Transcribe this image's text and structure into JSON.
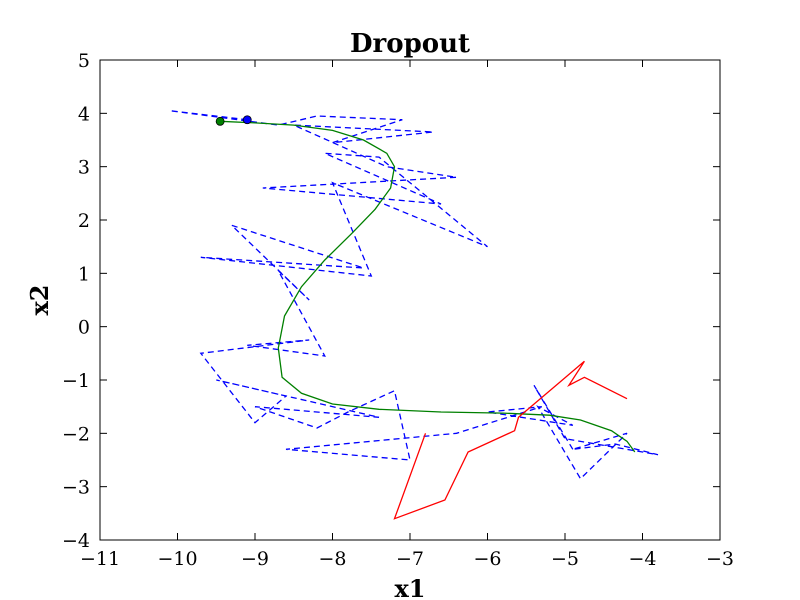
{
  "chart_data": {
    "type": "line",
    "title": "Dropout",
    "xlabel": "x1",
    "ylabel": "x2",
    "xlim": [
      -11,
      -3
    ],
    "ylim": [
      -4,
      5
    ],
    "xticks": [
      -11,
      -10,
      -9,
      -8,
      -7,
      -6,
      -5,
      -4,
      -3
    ],
    "xtick_labels": [
      "−11",
      "−10",
      "−9",
      "−8",
      "−7",
      "−6",
      "−5",
      "−4",
      "−3"
    ],
    "yticks": [
      -4,
      -3,
      -2,
      -1,
      0,
      1,
      2,
      3,
      4,
      5
    ],
    "ytick_labels": [
      "−4",
      "−3",
      "−2",
      "−1",
      "0",
      "1",
      "2",
      "3",
      "4",
      "5"
    ],
    "grid": false,
    "legend": "none",
    "series": [
      {
        "color": "#0000ff",
        "style": "dashed",
        "points": [
          [
            -9.1,
            3.88
          ],
          [
            -10.1,
            4.05
          ],
          [
            -8.7,
            3.78
          ],
          [
            -8.2,
            3.95
          ],
          [
            -7.1,
            3.88
          ],
          [
            -8.0,
            3.45
          ],
          [
            -6.7,
            3.65
          ],
          [
            -8.5,
            3.78
          ],
          [
            -7.3,
            3.0
          ],
          [
            -6.4,
            2.8
          ],
          [
            -8.9,
            2.6
          ],
          [
            -6.6,
            2.3
          ],
          [
            -8.1,
            3.25
          ],
          [
            -7.4,
            3.18
          ],
          [
            -6.0,
            1.5
          ],
          [
            -8.0,
            2.7
          ],
          [
            -7.5,
            0.95
          ],
          [
            -9.7,
            1.3
          ],
          [
            -7.6,
            1.1
          ],
          [
            -9.3,
            1.9
          ],
          [
            -8.3,
            0.5
          ],
          [
            -8.7,
            1.05
          ],
          [
            -8.1,
            -0.55
          ],
          [
            -9.1,
            -0.35
          ],
          [
            -8.3,
            -0.25
          ],
          [
            -9.7,
            -0.5
          ],
          [
            -9.0,
            -1.8
          ],
          [
            -8.6,
            -1.3
          ],
          [
            -9.5,
            -1.0
          ],
          [
            -7.4,
            -1.7
          ],
          [
            -9.0,
            -1.5
          ],
          [
            -8.2,
            -1.9
          ],
          [
            -7.8,
            -1.6
          ],
          [
            -7.2,
            -1.2
          ],
          [
            -7.0,
            -2.5
          ],
          [
            -8.6,
            -2.3
          ],
          [
            -6.4,
            -2.0
          ],
          [
            -5.3,
            -1.5
          ],
          [
            -6.0,
            -1.6
          ],
          [
            -4.9,
            -1.85
          ],
          [
            -5.35,
            -1.5
          ],
          [
            -4.8,
            -2.85
          ],
          [
            -4.2,
            -2.0
          ],
          [
            -4.9,
            -2.3
          ],
          [
            -4.35,
            -2.2
          ],
          [
            -3.8,
            -2.4
          ],
          [
            -5.0,
            -2.1
          ],
          [
            -5.4,
            -1.1
          ],
          [
            -4.9,
            -2.3
          ]
        ]
      },
      {
        "color": "#008000",
        "style": "solid",
        "points": [
          [
            -9.45,
            3.85
          ],
          [
            -9.0,
            3.82
          ],
          [
            -8.5,
            3.78
          ],
          [
            -8.0,
            3.68
          ],
          [
            -7.6,
            3.5
          ],
          [
            -7.3,
            3.25
          ],
          [
            -7.2,
            3.0
          ],
          [
            -7.25,
            2.6
          ],
          [
            -7.45,
            2.2
          ],
          [
            -7.75,
            1.75
          ],
          [
            -8.1,
            1.25
          ],
          [
            -8.4,
            0.75
          ],
          [
            -8.62,
            0.2
          ],
          [
            -8.7,
            -0.4
          ],
          [
            -8.65,
            -0.95
          ],
          [
            -8.4,
            -1.25
          ],
          [
            -8.0,
            -1.45
          ],
          [
            -7.4,
            -1.55
          ],
          [
            -6.6,
            -1.6
          ],
          [
            -5.8,
            -1.62
          ],
          [
            -5.2,
            -1.66
          ],
          [
            -4.8,
            -1.75
          ],
          [
            -4.4,
            -1.95
          ],
          [
            -4.2,
            -2.15
          ],
          [
            -4.1,
            -2.35
          ]
        ]
      },
      {
        "color": "#ff0000",
        "style": "solid",
        "points": [
          [
            -4.2,
            -1.35
          ],
          [
            -4.75,
            -0.95
          ],
          [
            -4.95,
            -1.1
          ],
          [
            -4.75,
            -0.65
          ],
          [
            -5.6,
            -1.7
          ],
          [
            -5.65,
            -1.95
          ],
          [
            -6.25,
            -2.35
          ],
          [
            -6.55,
            -3.25
          ],
          [
            -7.2,
            -3.6
          ],
          [
            -6.8,
            -2.0
          ]
        ]
      }
    ],
    "markers": [
      {
        "x": -9.1,
        "y": 3.88,
        "color": "#0000ff"
      },
      {
        "x": -9.45,
        "y": 3.85,
        "color": "#008000"
      }
    ]
  }
}
